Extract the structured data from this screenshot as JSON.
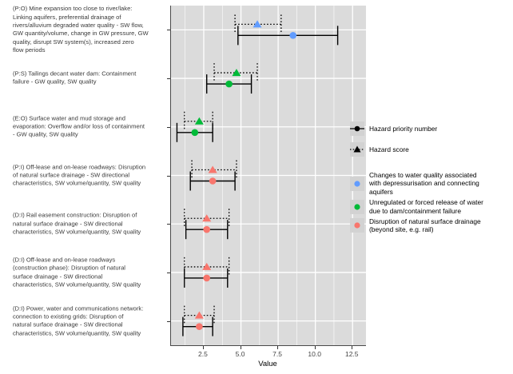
{
  "chart_data": {
    "type": "scatter",
    "subtype": "dot-and-errorbar forest plot",
    "title": "",
    "xlabel": "Value",
    "x_range": [
      0.3,
      13.4
    ],
    "x_ticks": [
      2.5,
      5.0,
      7.5,
      10.0,
      12.5
    ],
    "x_tick_labels": [
      "2.5",
      "5.0",
      "7.5",
      "10.0",
      "12.5"
    ],
    "grid": "on",
    "legend_position": "right",
    "shape_legend": [
      {
        "label": "Hazard priority number",
        "marker": "circle",
        "line": "solid"
      },
      {
        "label": "Hazard score",
        "marker": "triangle",
        "line": "dotted"
      }
    ],
    "color_legend": [
      {
        "label": "Changes to water quality associated\nwith depressurisation and connecting\naquifers",
        "color": "#619CFF"
      },
      {
        "label": "Unregulated or forced release of water\ndue to dam/containment failure",
        "color": "#00BA38"
      },
      {
        "label": "Disruption of natural surface drainage\n(beyond site, e.g. rail)",
        "color": "#F8766D"
      }
    ],
    "rows": [
      {
        "label": "(P:O) Mine expansion too close to river/lake:\nLinking aquifers, preferential drainage of\nrivers/alluvium degraded water quality - SW flow,\nGW quantity/volume, change in GW pressure, GW\nquality, disrupt SW system(s), increased zero\nflow periods",
        "color": "#619CFF",
        "hazard_score": {
          "value": 6.1,
          "low": 4.6,
          "high": 7.7
        },
        "hazard_priority": {
          "value": 8.5,
          "low": 4.8,
          "high": 11.5
        }
      },
      {
        "label": "(P:S) Tailings decant water dam: Containment\nfailure - GW quality, SW quality",
        "color": "#00BA38",
        "hazard_score": {
          "value": 4.7,
          "low": 3.2,
          "high": 6.1
        },
        "hazard_priority": {
          "value": 4.2,
          "low": 2.7,
          "high": 5.7
        }
      },
      {
        "label": "(E:O) Surface water and mud storage and\nevaporation: Overflow and/or loss of containment\n- GW quality, SW quality",
        "color": "#00BA38",
        "hazard_score": {
          "value": 2.2,
          "low": 1.2,
          "high": 3.1
        },
        "hazard_priority": {
          "value": 1.9,
          "low": 0.7,
          "high": 3.1
        }
      },
      {
        "label": "(P:I) Off-lease and on-lease roadways: Disruption\nof natural surface drainage - SW directional\ncharacteristics, SW volume/quantity, SW quality",
        "color": "#F8766D",
        "hazard_score": {
          "value": 3.1,
          "low": 1.7,
          "high": 4.7
        },
        "hazard_priority": {
          "value": 3.1,
          "low": 1.6,
          "high": 4.6
        }
      },
      {
        "label": "(D:I) Rail easement construction: Disruption of\nnatural surface drainage - SW directional\ncharacteristics, SW volume/quantity, SW quality",
        "color": "#F8766D",
        "hazard_score": {
          "value": 2.7,
          "low": 1.2,
          "high": 4.2
        },
        "hazard_priority": {
          "value": 2.7,
          "low": 1.3,
          "high": 4.1
        }
      },
      {
        "label": "(D:I) Off-lease and on-lease roadways\n(construction phase): Disruption of natural\nsurface drainage - SW directional\ncharacteristics, SW volume/quantity, SW quality",
        "color": "#F8766D",
        "hazard_score": {
          "value": 2.7,
          "low": 1.2,
          "high": 4.2
        },
        "hazard_priority": {
          "value": 2.7,
          "low": 1.2,
          "high": 4.1
        }
      },
      {
        "label": "(D:I) Power, water and communications network:\nconnection to existing grids: Disruption of\nnatural surface drainage - SW directional\ncharacteristics, SW volume/quantity, SW quality",
        "color": "#F8766D",
        "hazard_score": {
          "value": 2.2,
          "low": 1.2,
          "high": 3.2
        },
        "hazard_priority": {
          "value": 2.2,
          "low": 1.1,
          "high": 3.1
        }
      }
    ],
    "style_colors": {
      "panel_background": "#dbdbdb",
      "gridline": "#ffffff",
      "errorbar": "#000000"
    }
  }
}
